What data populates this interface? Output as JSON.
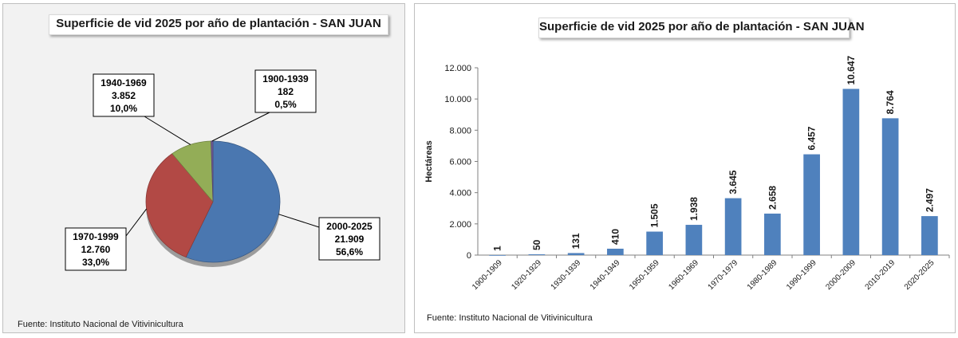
{
  "left_panel": {
    "title": "Superficie de vid 2025 por año de plantación - SAN JUAN",
    "source": "Fuente: Instituto Nacional de Vitivinicultura"
  },
  "right_panel": {
    "title": "Superficie de vid 2025 por año de plantación - SAN JUAN",
    "source": "Fuente: Instituto Nacional de Vitivinicultura"
  },
  "chart_data": [
    {
      "type": "pie",
      "title": "Superficie de vid 2025 por año de plantación - SAN JUAN",
      "slices": [
        {
          "label": "2000-2025",
          "value": 21909,
          "value_text": "21.909",
          "percent_text": "56,6%",
          "color": "#4a77b0"
        },
        {
          "label": "1970-1999",
          "value": 12760,
          "value_text": "12.760",
          "percent_text": "33,0%",
          "color": "#b24945"
        },
        {
          "label": "1940-1969",
          "value": 3852,
          "value_text": "3.852",
          "percent_text": "10,0%",
          "color": "#93ad57"
        },
        {
          "label": "1900-1939",
          "value": 182,
          "value_text": "182",
          "percent_text": "0,5%",
          "color": "#6f5a96"
        }
      ]
    },
    {
      "type": "bar",
      "title": "Superficie de vid 2025 por año de plantación - SAN JUAN",
      "xlabel": "",
      "ylabel": "Hectáreas",
      "ylim": [
        0,
        12000
      ],
      "yticks": [
        0,
        2000,
        4000,
        6000,
        8000,
        10000,
        12000
      ],
      "ytick_labels": [
        "0",
        "2.000",
        "4.000",
        "6.000",
        "8.000",
        "10.000",
        "12.000"
      ],
      "grid": false,
      "bar_color": "#4f81bd",
      "categories": [
        "1900-1909",
        "1920-1929",
        "1930-1939",
        "1940-1949",
        "1950-1959",
        "1960-1969",
        "1970-1979",
        "1980-1989",
        "1990-1999",
        "2000-2009",
        "2010-2019",
        "2020-2025"
      ],
      "values": [
        1,
        50,
        131,
        410,
        1505,
        1938,
        3645,
        2658,
        6457,
        10647,
        8764,
        2497
      ],
      "value_labels": [
        "1",
        "50",
        "131",
        "410",
        "1.505",
        "1.938",
        "3.645",
        "2.658",
        "6.457",
        "10.647",
        "8.764",
        "2.497"
      ]
    }
  ]
}
